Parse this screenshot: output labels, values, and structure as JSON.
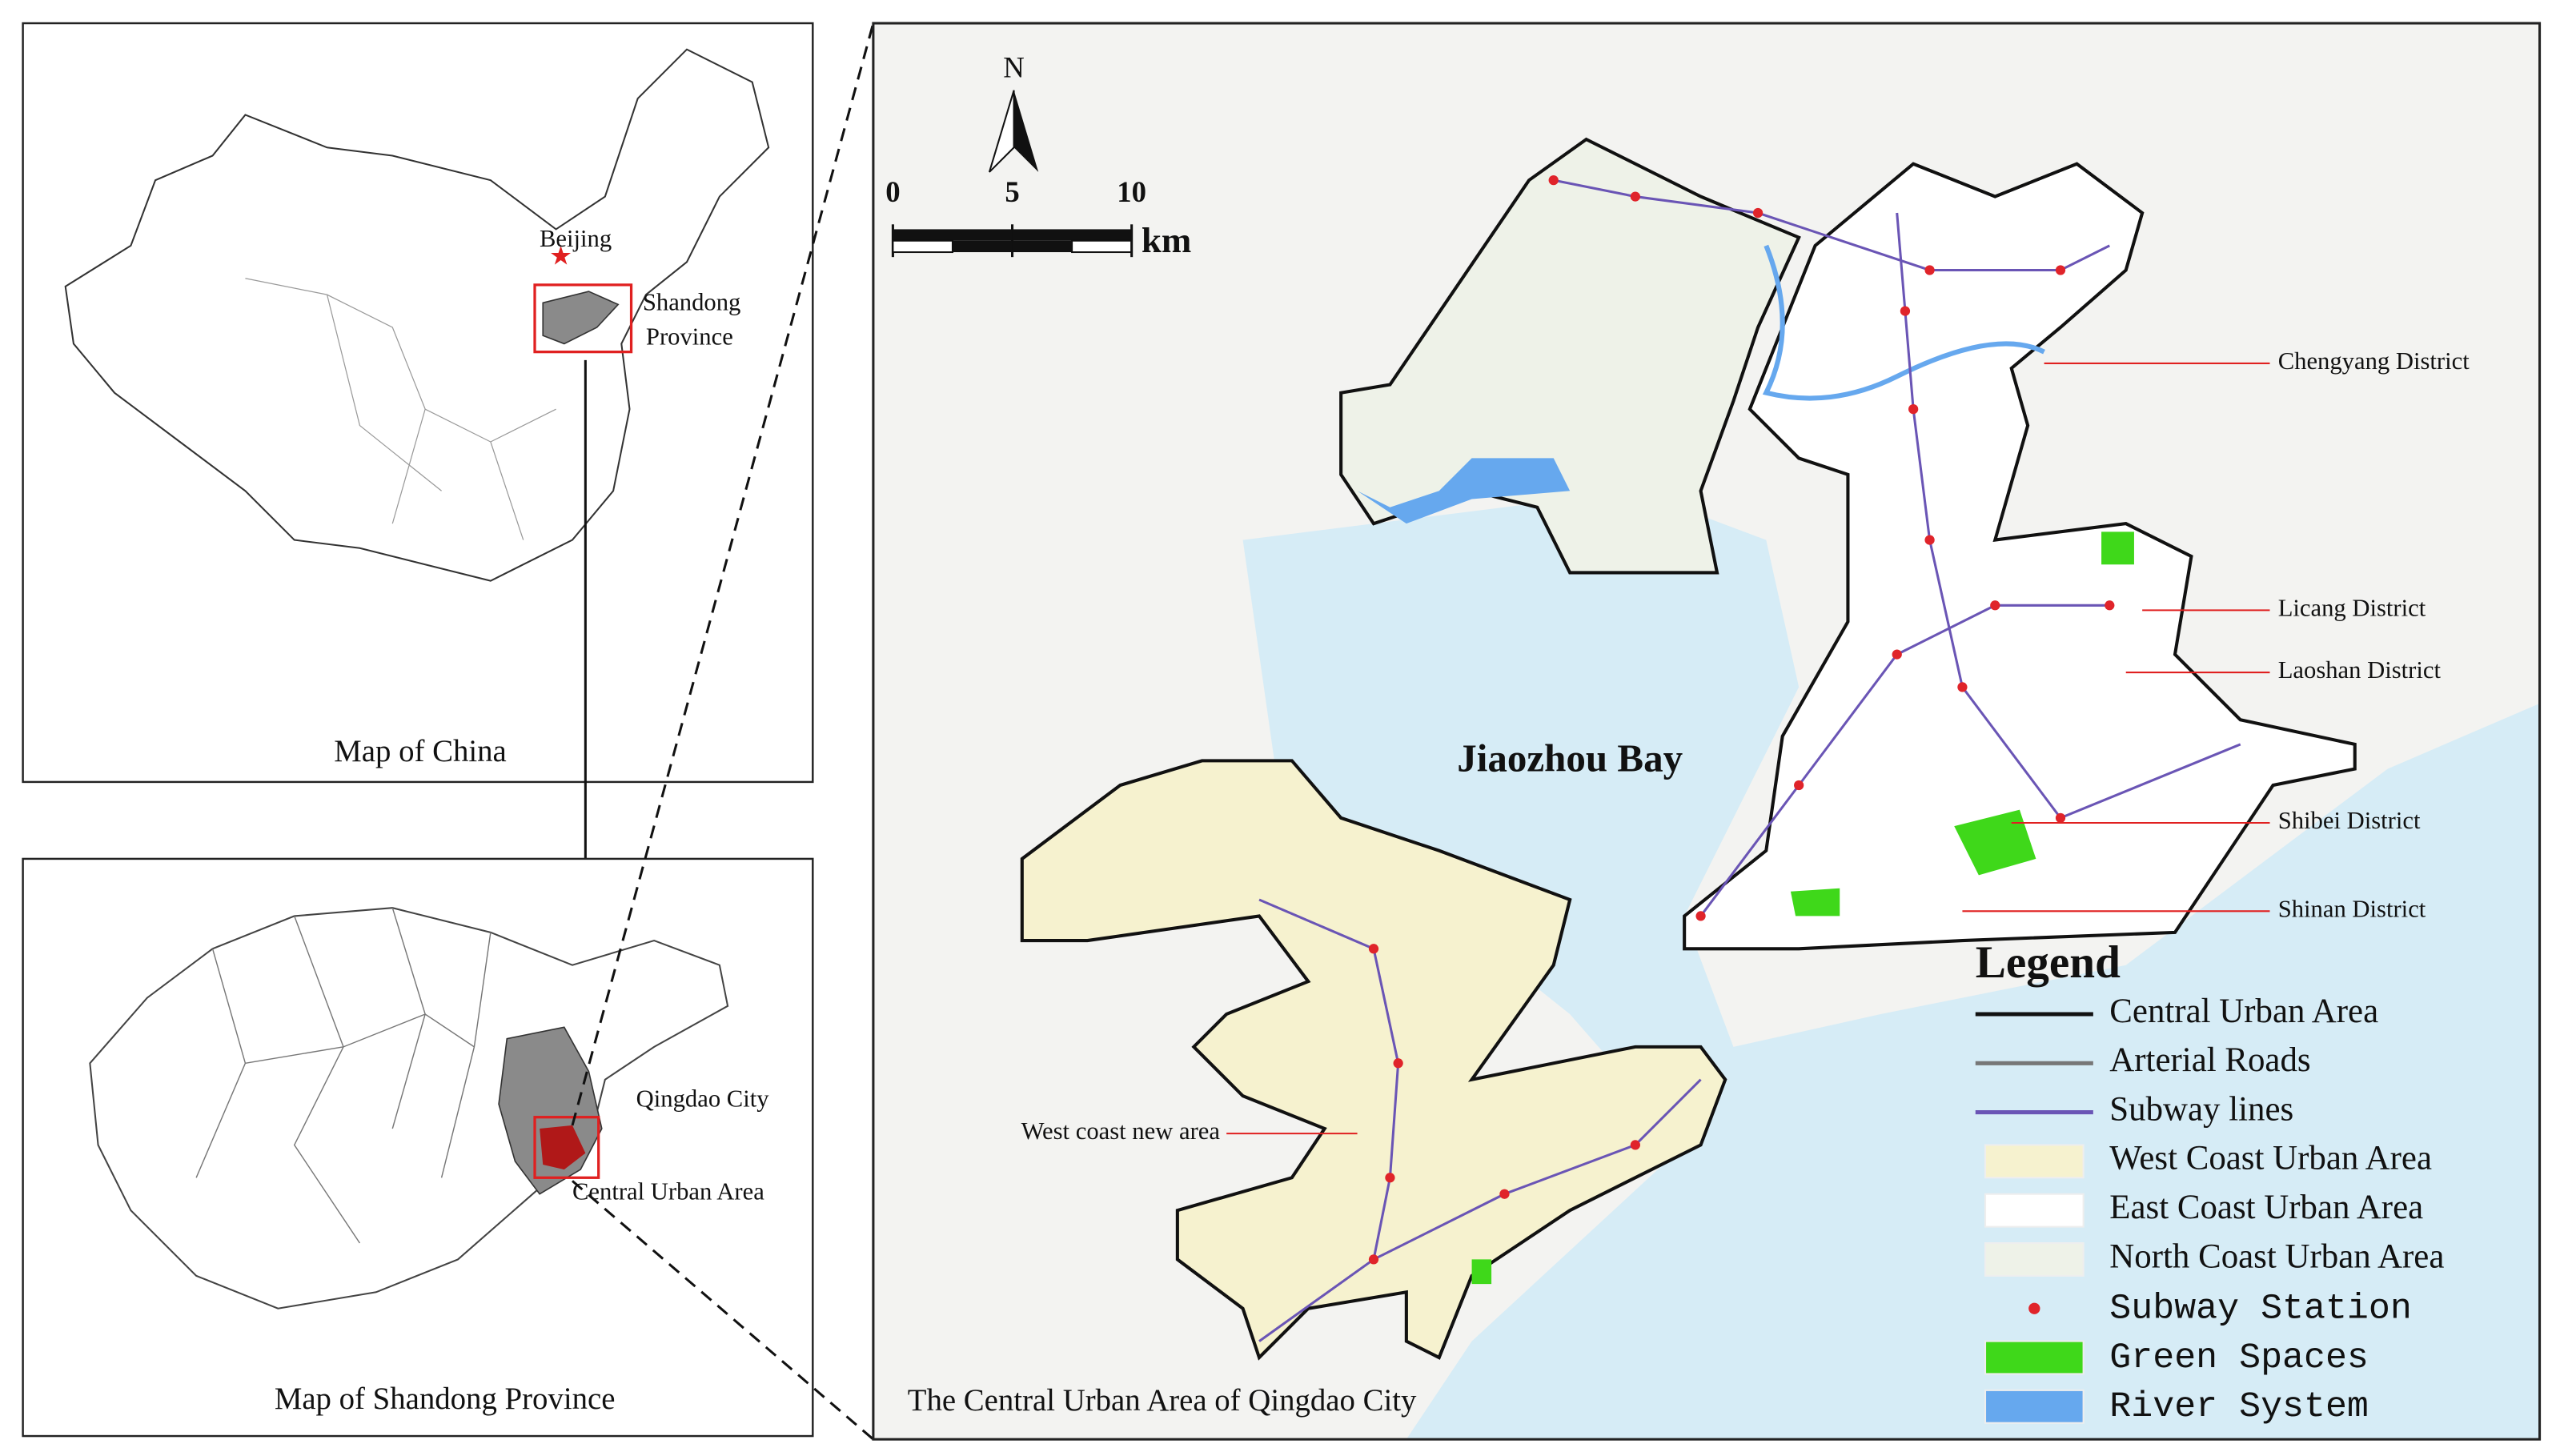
{
  "china_map": {
    "title": "Map of China",
    "capital": "Beijing",
    "province": [
      "Shandong",
      "Province"
    ]
  },
  "shandong_map": {
    "title": "Map of Shandong Province",
    "city": "Qingdao City",
    "area": "Central Urban Area"
  },
  "main_map": {
    "title": "The Central Urban Area of Qingdao City",
    "north": "N",
    "scale": {
      "ticks": [
        0,
        5,
        10
      ],
      "unit": "km"
    },
    "bay": "Jiaozhou Bay",
    "west_label": "West coast new area",
    "districts": [
      "Chengyang District",
      "Licang District",
      "Laoshan District",
      "Shibei District",
      "Shinan District"
    ]
  },
  "legend": {
    "title": "Legend",
    "items": [
      {
        "label": "Central Urban Area",
        "symbol": "line",
        "color": "#111111"
      },
      {
        "label": "Arterial Roads",
        "symbol": "line",
        "color": "#777777"
      },
      {
        "label": "Subway lines",
        "symbol": "line",
        "color": "#6a55b5"
      },
      {
        "label": "West Coast Urban Area",
        "symbol": "box",
        "color": "#f6f2cf"
      },
      {
        "label": "East Coast Urban Area",
        "symbol": "box",
        "color": "#ffffff"
      },
      {
        "label": "North Coast Urban Area",
        "symbol": "box",
        "color": "#eef2e8"
      },
      {
        "label": "Subway Station",
        "symbol": "dot",
        "color": "#e0242a"
      },
      {
        "label": "Green Spaces",
        "symbol": "box",
        "color": "#3fd81a"
      },
      {
        "label": "River System",
        "symbol": "box",
        "color": "#66a8ee"
      }
    ]
  }
}
